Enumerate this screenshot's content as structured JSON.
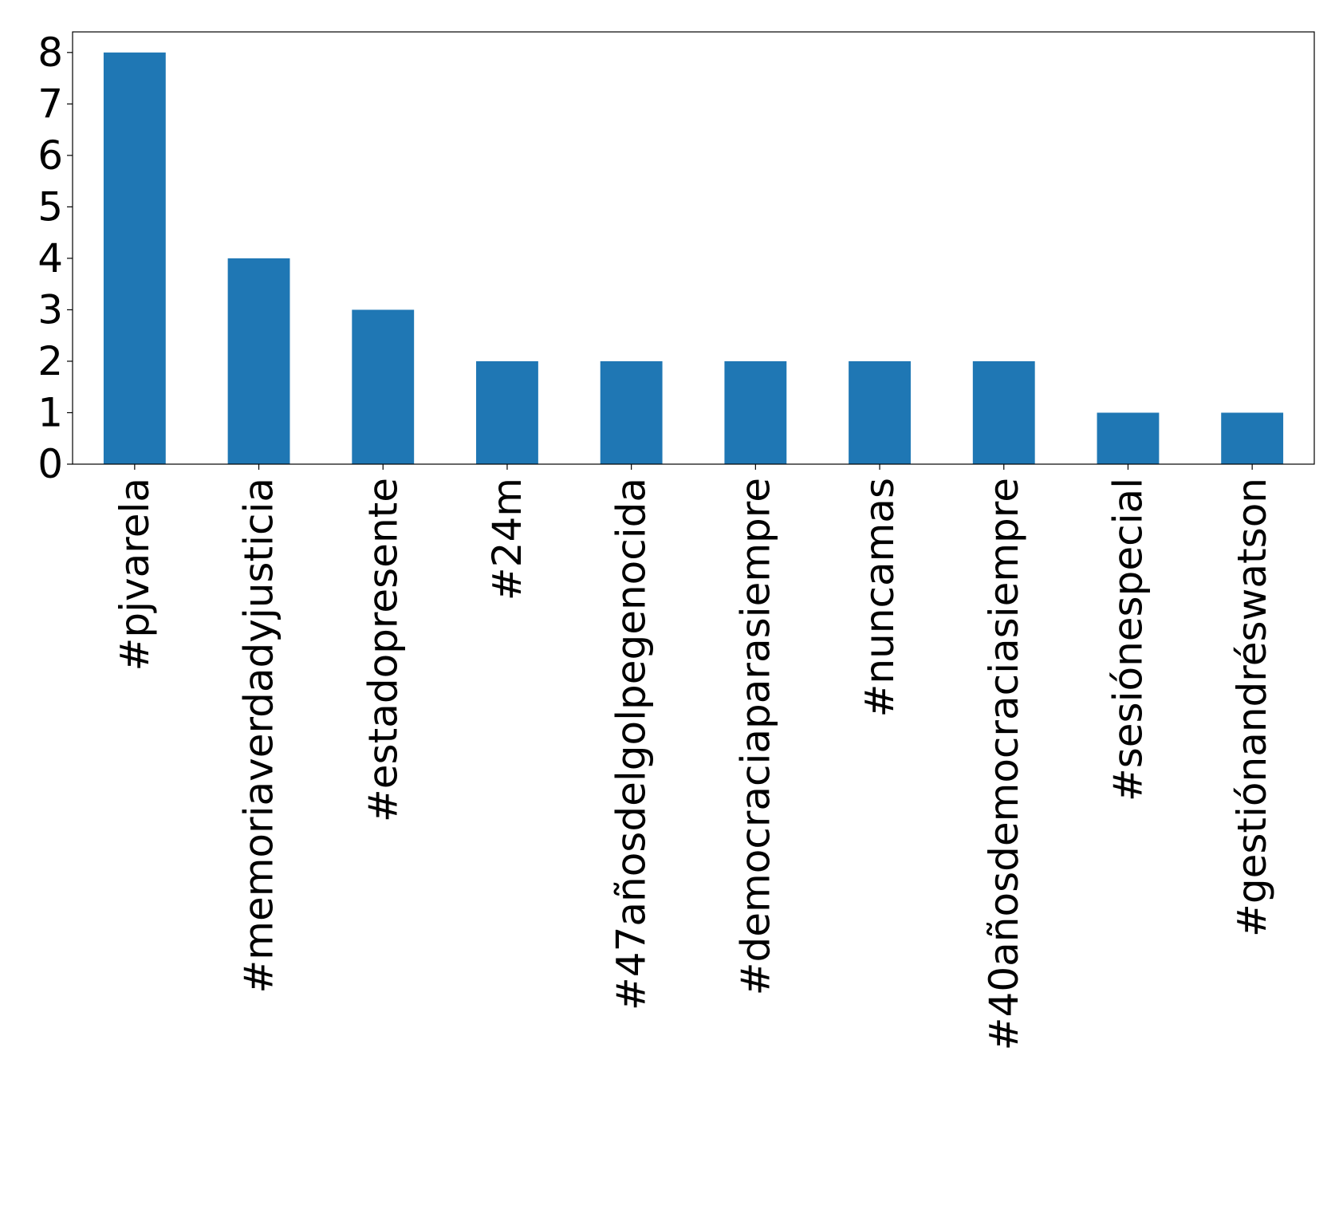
{
  "chart_data": {
    "type": "bar",
    "title": "",
    "xlabel": "",
    "ylabel": "",
    "categories": [
      "#pjvarela",
      "#memoriaverdadyjusticia",
      "#estadopresente",
      "#24m",
      "#47añosdelgolpegenocida",
      "#democraciaparasiempre",
      "#nuncamas",
      "#40añosdemocraciasiempre",
      "#sesiónespecial",
      "#gestiónandréswatson"
    ],
    "values": [
      8,
      4,
      3,
      2,
      2,
      2,
      2,
      2,
      1,
      1
    ],
    "ylim": [
      0,
      8.4
    ],
    "yticks": [
      "0",
      "1",
      "2",
      "3",
      "4",
      "5",
      "6",
      "7",
      "8"
    ],
    "grid": false,
    "legend": "none",
    "bar_color": "#1f77b4"
  }
}
